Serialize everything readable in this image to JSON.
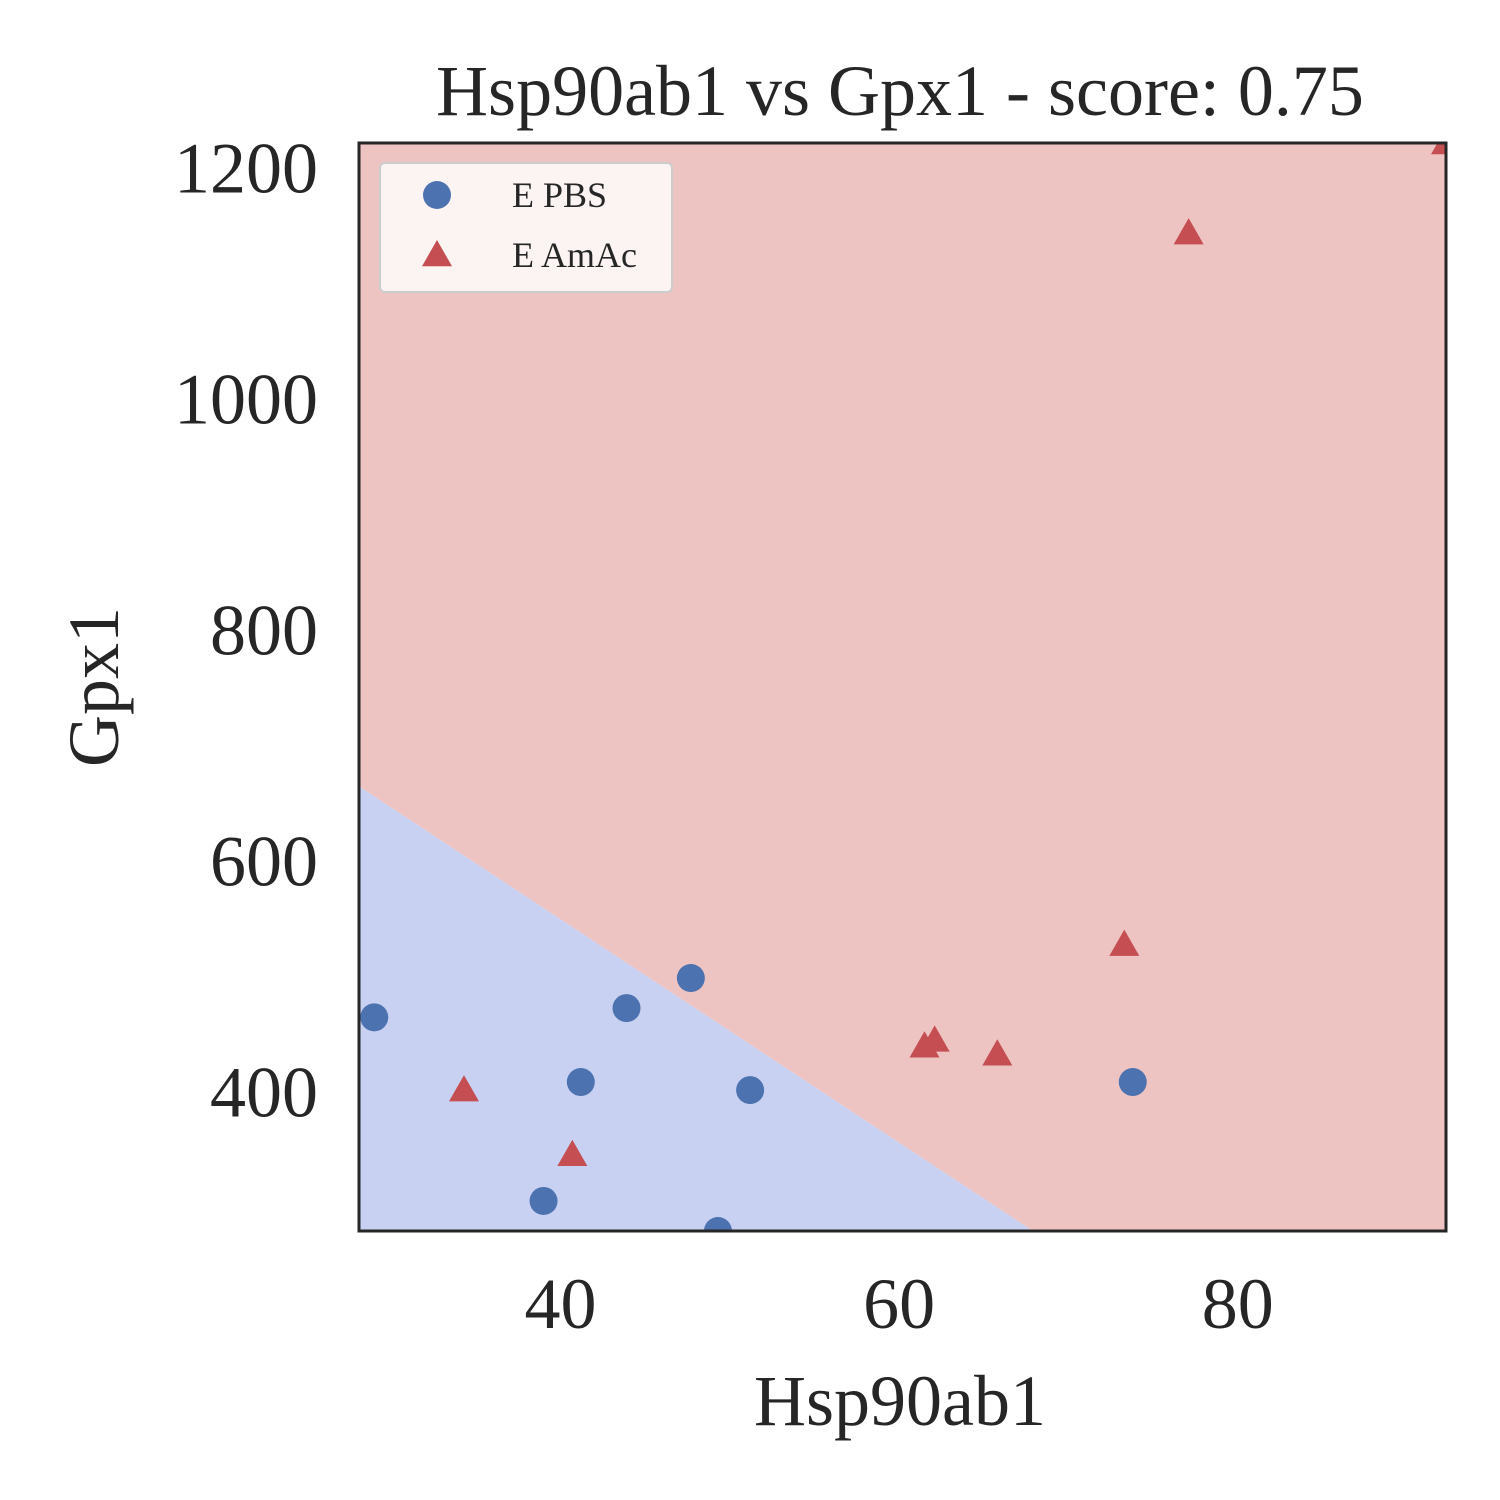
{
  "chart_data": {
    "type": "scatter",
    "title": "Hsp90ab1 vs Gpx1 - score: 0.75",
    "xlabel": "Hsp90ab1",
    "ylabel": "Gpx1",
    "xlim": [
      28.1,
      92.3
    ],
    "ylim": [
      280,
      1222
    ],
    "xticks": [
      40,
      60,
      80
    ],
    "yticks": [
      400,
      600,
      800,
      1000,
      1200
    ],
    "grid": false,
    "legend": {
      "placement": "upper left"
    },
    "decision_regions": {
      "boundary_line": [
        [
          28.1,
          665
        ],
        [
          67.9,
          280
        ]
      ],
      "below_color": "#c8d1f2",
      "above_color": "#eec4c3"
    },
    "series": [
      {
        "name": "E PBS",
        "marker": "circle",
        "color": "#4c72b0",
        "points": [
          [
            29.0,
            465
          ],
          [
            39.0,
            306
          ],
          [
            41.2,
            409
          ],
          [
            43.9,
            473
          ],
          [
            47.7,
            499
          ],
          [
            49.3,
            280
          ],
          [
            51.2,
            402
          ],
          [
            73.8,
            409
          ]
        ]
      },
      {
        "name": "E AmAc",
        "marker": "triangle",
        "color": "#c44e52",
        "points": [
          [
            34.3,
            402
          ],
          [
            40.7,
            346
          ],
          [
            61.5,
            440
          ],
          [
            62.1,
            445
          ],
          [
            65.8,
            433
          ],
          [
            73.3,
            528
          ],
          [
            77.1,
            1144
          ],
          [
            92.3,
            1222
          ]
        ]
      }
    ]
  }
}
